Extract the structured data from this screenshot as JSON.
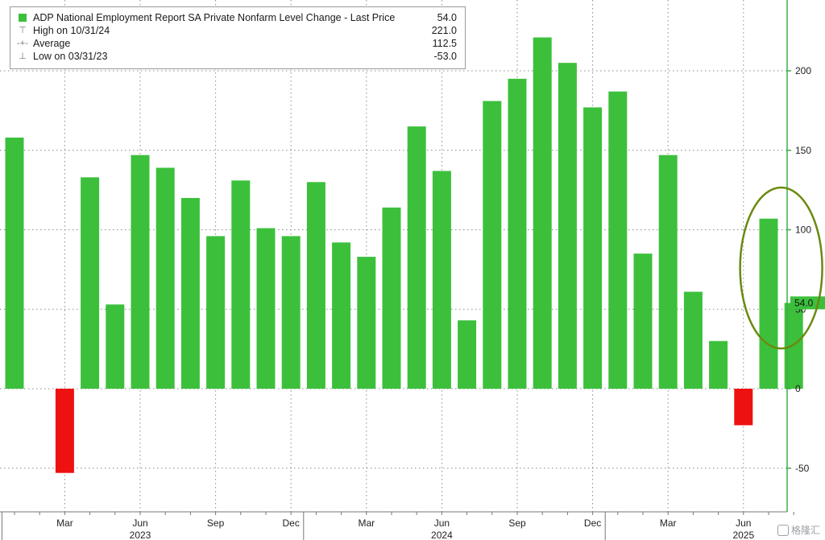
{
  "chart_data": {
    "type": "bar",
    "title": "",
    "xlabel": "",
    "ylabel": "",
    "ylim": [
      -70,
      245
    ],
    "yticks": [
      -50,
      0,
      50,
      100,
      150,
      200
    ],
    "grid": true,
    "legend_position": "top-left",
    "categories": [
      "Jan 2023",
      "Feb 2023",
      "Mar 2023",
      "Apr 2023",
      "May 2023",
      "Jun 2023",
      "Jul 2023",
      "Aug 2023",
      "Sep 2023",
      "Oct 2023",
      "Nov 2023",
      "Dec 2023",
      "Jan 2024",
      "Feb 2024",
      "Mar 2024",
      "Apr 2024",
      "May 2024",
      "Jun 2024",
      "Jul 2024",
      "Aug 2024",
      "Sep 2024",
      "Oct 2024",
      "Nov 2024",
      "Dec 2024",
      "Jan 2025",
      "Feb 2025",
      "Mar 2025",
      "Apr 2025",
      "May 2025",
      "Jun 2025",
      "Jul 2025",
      "Aug 2025"
    ],
    "series": [
      {
        "name": "ADP National Employment Report SA Private Nonfarm Level Change - Last Price",
        "values": [
          158,
          null,
          -53,
          133,
          53,
          147,
          139,
          120,
          96,
          131,
          101,
          96,
          130,
          92,
          83,
          114,
          165,
          137,
          43,
          181,
          195,
          221,
          205,
          177,
          187,
          85,
          147,
          61,
          30,
          -23,
          107,
          54
        ]
      }
    ],
    "month_labels": [
      {
        "index": 2,
        "label": "Mar"
      },
      {
        "index": 5,
        "label": "Jun"
      },
      {
        "index": 8,
        "label": "Sep"
      },
      {
        "index": 11,
        "label": "Dec"
      },
      {
        "index": 14,
        "label": "Mar"
      },
      {
        "index": 17,
        "label": "Jun"
      },
      {
        "index": 20,
        "label": "Sep"
      },
      {
        "index": 23,
        "label": "Dec"
      },
      {
        "index": 26,
        "label": "Mar"
      },
      {
        "index": 29,
        "label": "Jun"
      }
    ],
    "year_labels": [
      {
        "index": 5,
        "label": "2023"
      },
      {
        "index": 17,
        "label": "2024"
      },
      {
        "index": 29,
        "label": "2025"
      }
    ],
    "last_value_label": "54.0",
    "highlight": {
      "start_index": 30,
      "end_index": 31,
      "shape": "ellipse",
      "color": "#6a8a10"
    },
    "colors": {
      "positive": "#3cc03c",
      "negative": "#ee1111",
      "axis": "#3cb043",
      "last_box": "#3cc03c",
      "grid": "#8a8a8a"
    }
  },
  "legend": {
    "series_label": "ADP National Employment Report SA Private Nonfarm Level Change - Last Price",
    "series_value": "54.0",
    "high_label": "High on 10/31/24",
    "high_value": "221.0",
    "average_label": "Average",
    "average_value": "112.5",
    "low_label": "Low on 03/31/23",
    "low_value": "-53.0"
  },
  "watermark": {
    "text": "格隆汇"
  }
}
